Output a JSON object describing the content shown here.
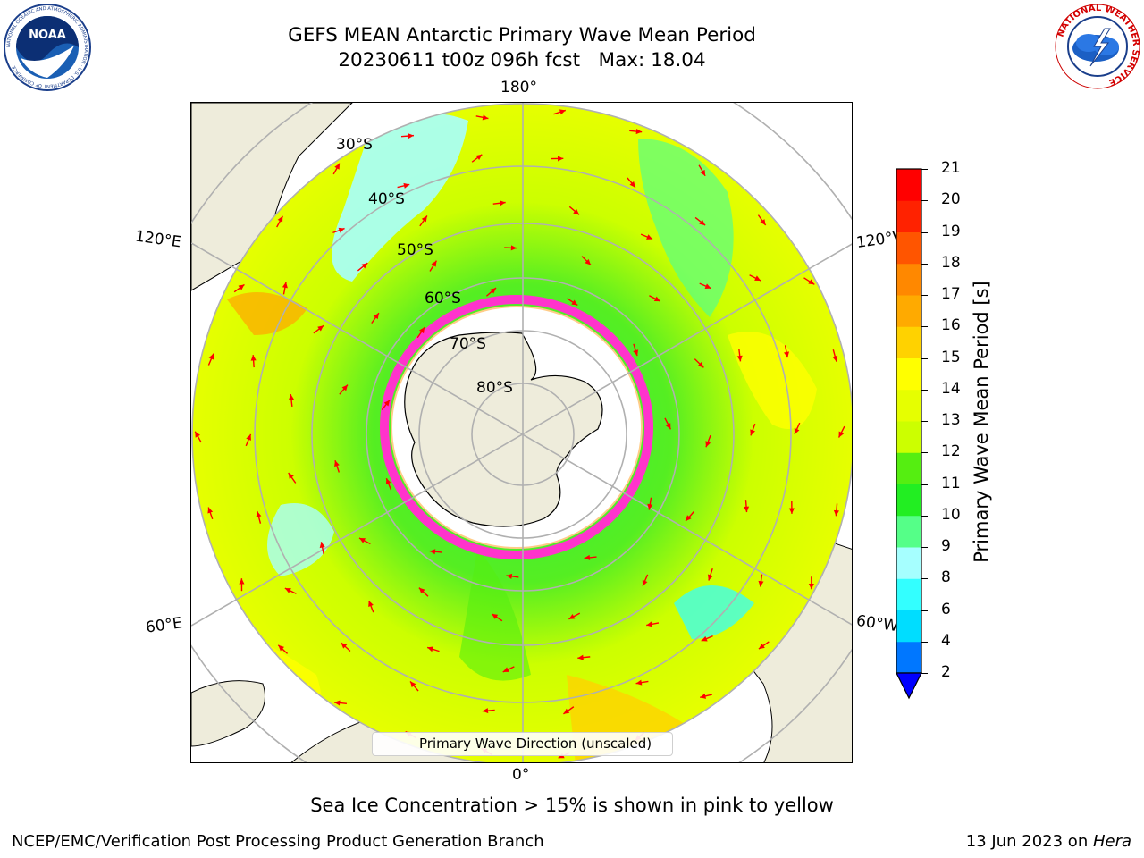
{
  "header": {
    "title_line1": "GEFS MEAN Antarctic Primary Wave Mean Period",
    "title_line2": "20230611 t00z 096h fcst   Max: 18.04"
  },
  "logos": {
    "noaa_text": "NOAA",
    "noaa_ring_text": "NATIONAL OCEANIC AND ATMOSPHERIC ADMINISTRATION · U.S. DEPARTMENT OF COMMERCE",
    "nws_ring_text": "NATIONAL WEATHER SERVICE"
  },
  "map": {
    "longitude_labels": {
      "top": "180°",
      "bottom": "0°",
      "left_upper": "120°E",
      "left_lower": "60°E",
      "right_upper": "120°W",
      "right_lower": "60°W"
    },
    "latitude_labels": [
      "30°S",
      "40°S",
      "50°S",
      "60°S",
      "70°S",
      "80°S"
    ],
    "legend_label": "Primary Wave Direction (unscaled)",
    "colors": {
      "land": "#eeecdb",
      "ice": "#ff33cc",
      "arrow": "#ff0000",
      "grid": "#b0b0b0"
    }
  },
  "colorbar": {
    "label": "Primary Wave Mean Period [s]",
    "ticks": [
      "21",
      "20",
      "19",
      "18",
      "17",
      "16",
      "15",
      "14",
      "13",
      "12",
      "11",
      "10",
      "9",
      "8",
      "6",
      "4",
      "2"
    ],
    "colors": [
      "#0000ff",
      "#0077ff",
      "#00ddff",
      "#33ffff",
      "#a6ffff",
      "#55ff88",
      "#22ee22",
      "#55ee11",
      "#ccff00",
      "#e6ff00",
      "#ffff00",
      "#ffd200",
      "#ffaa00",
      "#ff8800",
      "#ff5500",
      "#ff2200",
      "#ff0000"
    ]
  },
  "notes": {
    "sea_ice": "Sea Ice Concentration > 15% is shown in pink to yellow"
  },
  "footer": {
    "left": "NCEP/EMC/Verification Post Processing Product Generation Branch",
    "right_prefix": "13 Jun 2023 on ",
    "right_host": "Hera"
  }
}
